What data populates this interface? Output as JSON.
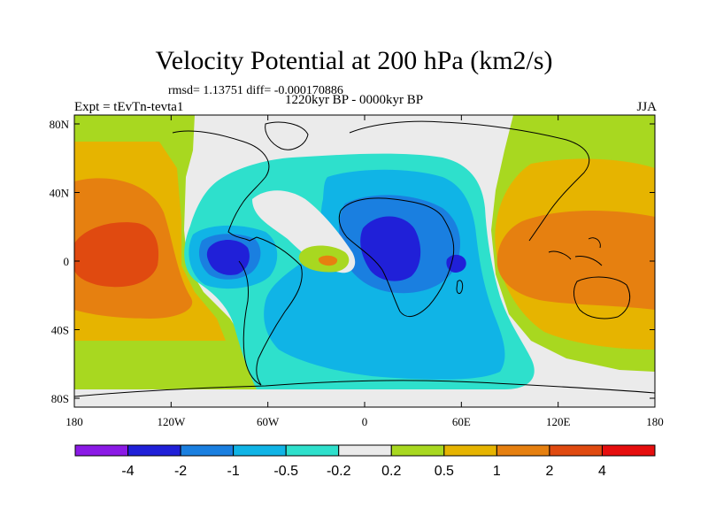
{
  "title": "Velocity Potential at 200 hPa (km2/s)",
  "stats": "rmsd= 1.13751 diff= -0.000170886",
  "subtitle": "1220kyr BP - 0000kyr BP",
  "expt": "Expt = tEvTn-tevta1",
  "season": "JJA",
  "map_axes": {
    "y_ticks": [
      {
        "label": "80N",
        "lat": 80
      },
      {
        "label": "40N",
        "lat": 40
      },
      {
        "label": "0",
        "lat": 0
      },
      {
        "label": "40S",
        "lat": -40
      },
      {
        "label": "80S",
        "lat": -80
      }
    ],
    "x_ticks": [
      {
        "label": "180",
        "lon": -180
      },
      {
        "label": "120W",
        "lon": -120
      },
      {
        "label": "60W",
        "lon": -60
      },
      {
        "label": "0",
        "lon": 0
      },
      {
        "label": "60E",
        "lon": 60
      },
      {
        "label": "120E",
        "lon": 120
      },
      {
        "label": "180",
        "lon": 180
      }
    ]
  },
  "colorbar": {
    "colors": [
      "#8b1ae6",
      "#2020d8",
      "#1a7fe0",
      "#10b4e6",
      "#2ee0cc",
      "#ebebeb",
      "#a8d820",
      "#e6b400",
      "#e68010",
      "#e04a10",
      "#e60e0e"
    ],
    "labels": [
      "-4",
      "-2",
      "-1",
      "-0.5",
      "-0.2",
      "0.2",
      "0.5",
      "1",
      "2",
      "4"
    ]
  },
  "colors": {
    "neutral": "#ebebeb",
    "pos_1": "#a8d820",
    "pos_2": "#e6b400",
    "pos_3": "#e68010",
    "pos_4": "#e04a10",
    "neg_1": "#2ee0cc",
    "neg_2": "#10b4e6",
    "neg_3": "#1a7fe0",
    "neg_4": "#2020d8"
  }
}
